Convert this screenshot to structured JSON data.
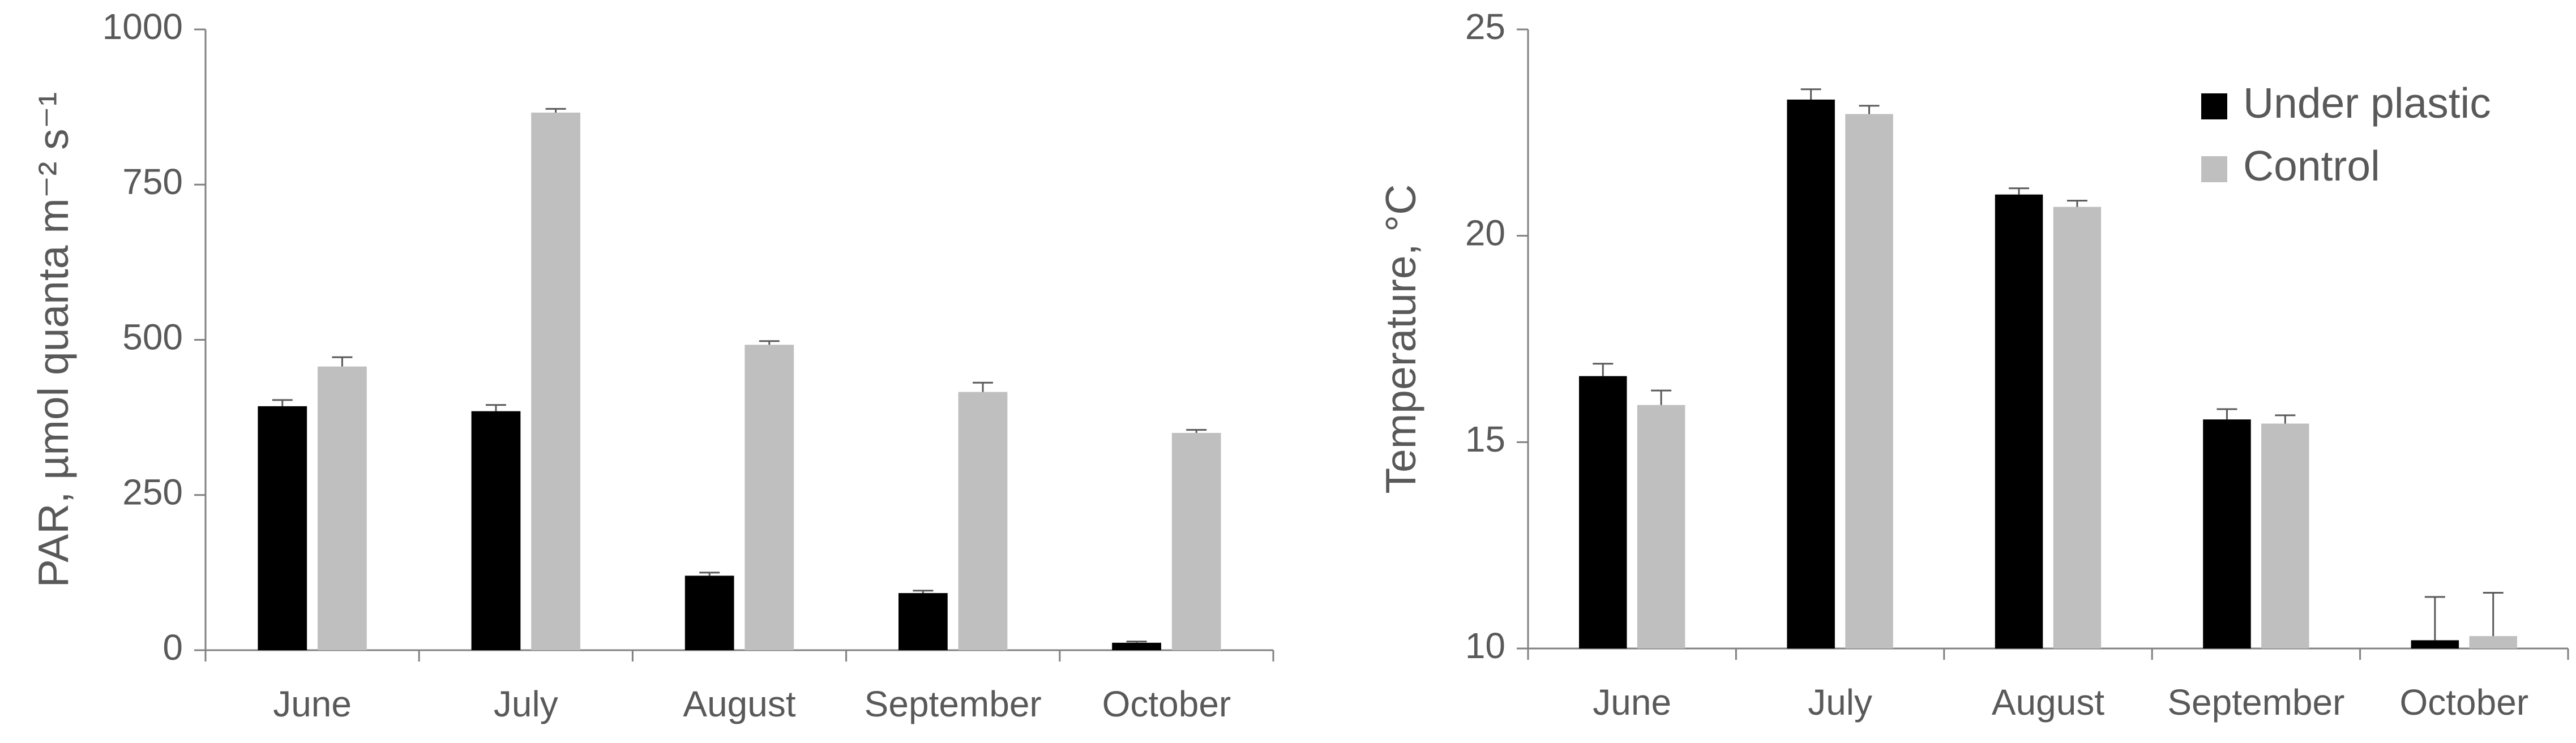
{
  "chart_data": [
    {
      "type": "bar",
      "y_label": "PAR, µmol quanta m⁻² s⁻¹",
      "categories": [
        "June",
        "July",
        "August",
        "September",
        "October"
      ],
      "series": [
        {
          "color": "#000000",
          "values": [
            393,
            385,
            120,
            92,
            12
          ],
          "errors": [
            10,
            10,
            5,
            4,
            2
          ]
        },
        {
          "color": "#bfbfbf",
          "values": [
            457,
            866,
            492,
            416,
            350
          ],
          "errors": [
            15,
            6,
            6,
            15,
            5
          ]
        }
      ],
      "ylim": [
        0,
        1000
      ],
      "yticks": [
        0,
        250,
        500,
        750,
        1000
      ]
    },
    {
      "type": "bar",
      "y_label": "Temperature, °C",
      "categories": [
        "June",
        "July",
        "August",
        "September",
        "October"
      ],
      "series": [
        {
          "name": "Under plastic",
          "color": "#000000",
          "values": [
            16.6,
            23.3,
            21.0,
            15.55,
            10.2
          ],
          "errors": [
            0.3,
            0.25,
            0.15,
            0.25,
            1.05
          ]
        },
        {
          "name": "Control",
          "color": "#bfbfbf",
          "values": [
            15.9,
            22.95,
            20.7,
            15.45,
            10.3
          ],
          "errors": [
            0.35,
            0.2,
            0.15,
            0.2,
            1.05
          ]
        }
      ],
      "ylim": [
        10,
        25
      ],
      "yticks": [
        10,
        15,
        20,
        25
      ],
      "legend": "upper right"
    }
  ]
}
